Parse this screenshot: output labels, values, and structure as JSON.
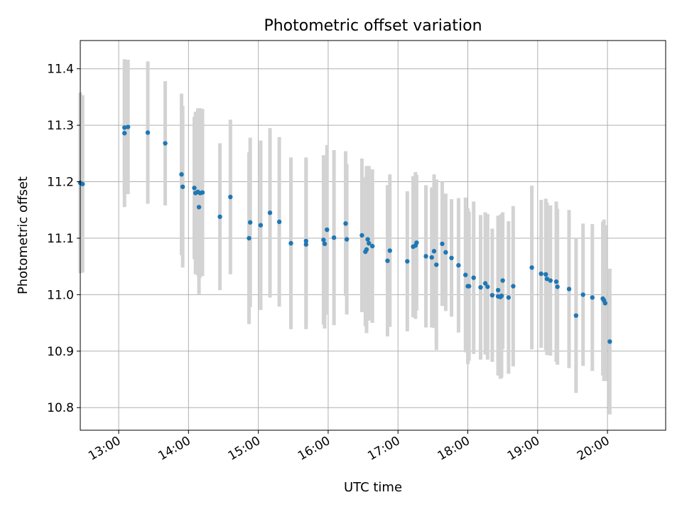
{
  "chart_data": {
    "type": "scatter",
    "title": "Photometric offset variation",
    "xlabel": "UTC time",
    "ylabel": "Photometric offset",
    "x_ticks": [
      "13:00",
      "14:00",
      "15:00",
      "16:00",
      "17:00",
      "18:00",
      "19:00",
      "20:00"
    ],
    "y_ticks": [
      "10.8",
      "10.9",
      "11.0",
      "11.1",
      "11.2",
      "11.3",
      "11.4"
    ],
    "xlim": [
      "12:27",
      "20:50"
    ],
    "ylim": [
      10.76,
      11.45
    ],
    "grid": true,
    "marker_color": "#1f77b4",
    "errorbar_color": "#d3d3d3",
    "series": [
      {
        "x": [
          "12:27",
          "12:29",
          "13:05",
          "13:05",
          "13:08",
          "13:25",
          "13:40",
          "13:54",
          "13:55",
          "14:05",
          "14:06",
          "14:08",
          "14:09",
          "14:10",
          "14:12",
          "14:27",
          "14:36",
          "14:52",
          "14:53",
          "15:02",
          "15:10",
          "15:18",
          "15:28",
          "15:41",
          "15:41",
          "15:56",
          "15:57",
          "15:59",
          "16:05",
          "16:15",
          "16:16",
          "16:29",
          "16:32",
          "16:33",
          "16:34",
          "16:35",
          "16:38",
          "16:51",
          "16:53",
          "17:08",
          "17:13",
          "17:15",
          "17:16",
          "17:24",
          "17:29",
          "17:31",
          "17:33",
          "17:38",
          "17:41",
          "17:46",
          "17:52",
          "17:58",
          "18:00",
          "18:01",
          "18:05",
          "18:11",
          "18:15",
          "18:17",
          "18:21",
          "18:26",
          "18:26",
          "18:28",
          "18:29",
          "18:30",
          "18:35",
          "18:39",
          "18:55",
          "19:03",
          "19:07",
          "19:08",
          "19:11",
          "19:16",
          "19:17",
          "19:27",
          "19:33",
          "19:39",
          "19:47",
          "19:56",
          "19:57",
          "19:58",
          "20:02"
        ],
        "y": [
          11.198,
          11.196,
          11.286,
          11.296,
          11.297,
          11.287,
          11.268,
          11.213,
          11.191,
          11.189,
          11.18,
          11.182,
          11.155,
          11.18,
          11.181,
          11.138,
          11.173,
          11.1,
          11.128,
          11.123,
          11.145,
          11.129,
          11.091,
          11.095,
          11.089,
          11.097,
          11.09,
          11.115,
          11.101,
          11.126,
          11.098,
          11.105,
          11.076,
          11.08,
          11.098,
          11.091,
          11.086,
          11.06,
          11.078,
          11.059,
          11.085,
          11.087,
          11.092,
          11.068,
          11.066,
          11.077,
          11.053,
          11.09,
          11.075,
          11.065,
          11.052,
          11.035,
          11.015,
          11.015,
          11.03,
          11.013,
          11.02,
          11.014,
          10.999,
          11.008,
          10.997,
          10.996,
          10.998,
          11.025,
          10.995,
          11.015,
          11.048,
          11.037,
          11.036,
          11.028,
          11.025,
          11.023,
          11.014,
          11.01,
          10.963,
          11.0,
          10.995,
          10.993,
          10.99,
          10.985,
          10.917
        ],
        "err": [
          0.16,
          0.157,
          0.131,
          0.118,
          0.119,
          0.126,
          0.11,
          0.143,
          0.143,
          0.126,
          0.144,
          0.148,
          0.154,
          0.15,
          0.148,
          0.13,
          0.137,
          0.152,
          0.15,
          0.15,
          0.15,
          0.15,
          0.152,
          0.148,
          0.15,
          0.15,
          0.15,
          0.15,
          0.155,
          0.128,
          0.133,
          0.136,
          0.132,
          0.148,
          0.128,
          0.137,
          0.136,
          0.134,
          0.135,
          0.124,
          0.125,
          0.13,
          0.12,
          0.126,
          0.124,
          0.136,
          0.151,
          0.11,
          0.104,
          0.104,
          0.119,
          0.137,
          0.138,
          0.132,
          0.135,
          0.128,
          0.126,
          0.129,
          0.118,
          0.132,
          0.14,
          0.145,
          0.145,
          0.121,
          0.135,
          0.142,
          0.145,
          0.131,
          0.134,
          0.135,
          0.133,
          0.142,
          0.138,
          0.14,
          0.137,
          0.126,
          0.13,
          0.136,
          0.143,
          0.138,
          0.129
        ]
      }
    ]
  }
}
